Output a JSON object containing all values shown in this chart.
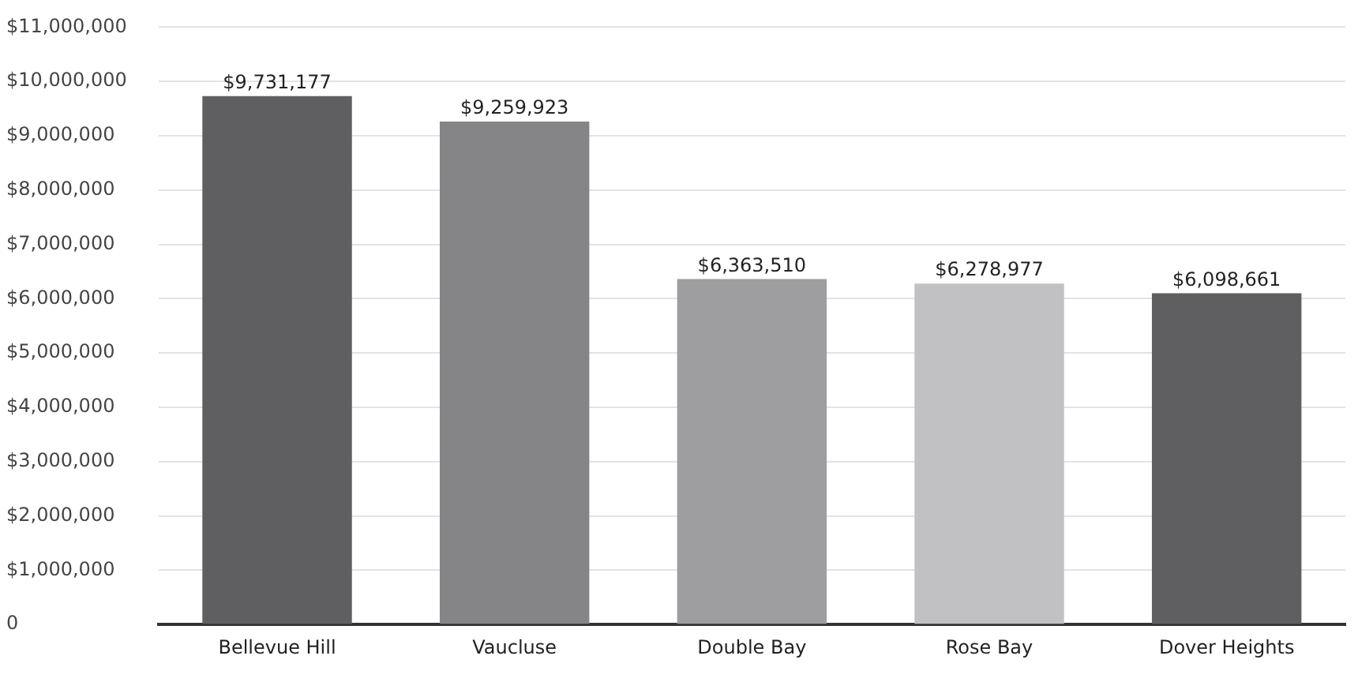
{
  "chart_data": {
    "type": "bar",
    "categories": [
      "Bellevue Hill",
      "Vaucluse",
      "Double Bay",
      "Rose Bay",
      "Dover Heights"
    ],
    "values": [
      9731177,
      9259923,
      6363510,
      6278977,
      6098661
    ],
    "colors": [
      "#5f5f61",
      "#858587",
      "#9e9ea0",
      "#c1c1c3",
      "#5f5f61"
    ],
    "value_labels": [
      "$9,731,177",
      "$9,259,923",
      "$6,363,510",
      "$6,278,977",
      "$6,098,661"
    ],
    "ylim": [
      0,
      11000000
    ],
    "yticks": [
      {
        "value": 0,
        "label": "0"
      },
      {
        "value": 1000000,
        "label": "$1,000,000"
      },
      {
        "value": 2000000,
        "label": "$2,000,000"
      },
      {
        "value": 3000000,
        "label": "$3,000,000"
      },
      {
        "value": 4000000,
        "label": "$4,000,000"
      },
      {
        "value": 5000000,
        "label": "$5,000,000"
      },
      {
        "value": 6000000,
        "label": "$6,000,000"
      },
      {
        "value": 7000000,
        "label": "$7,000,000"
      },
      {
        "value": 8000000,
        "label": "$8,000,000"
      },
      {
        "value": 9000000,
        "label": "$9,000,000"
      },
      {
        "value": 10000000,
        "label": "$10,000,000"
      },
      {
        "value": 11000000,
        "label": "$11,000,000"
      }
    ],
    "grid": "y",
    "legend": false
  }
}
